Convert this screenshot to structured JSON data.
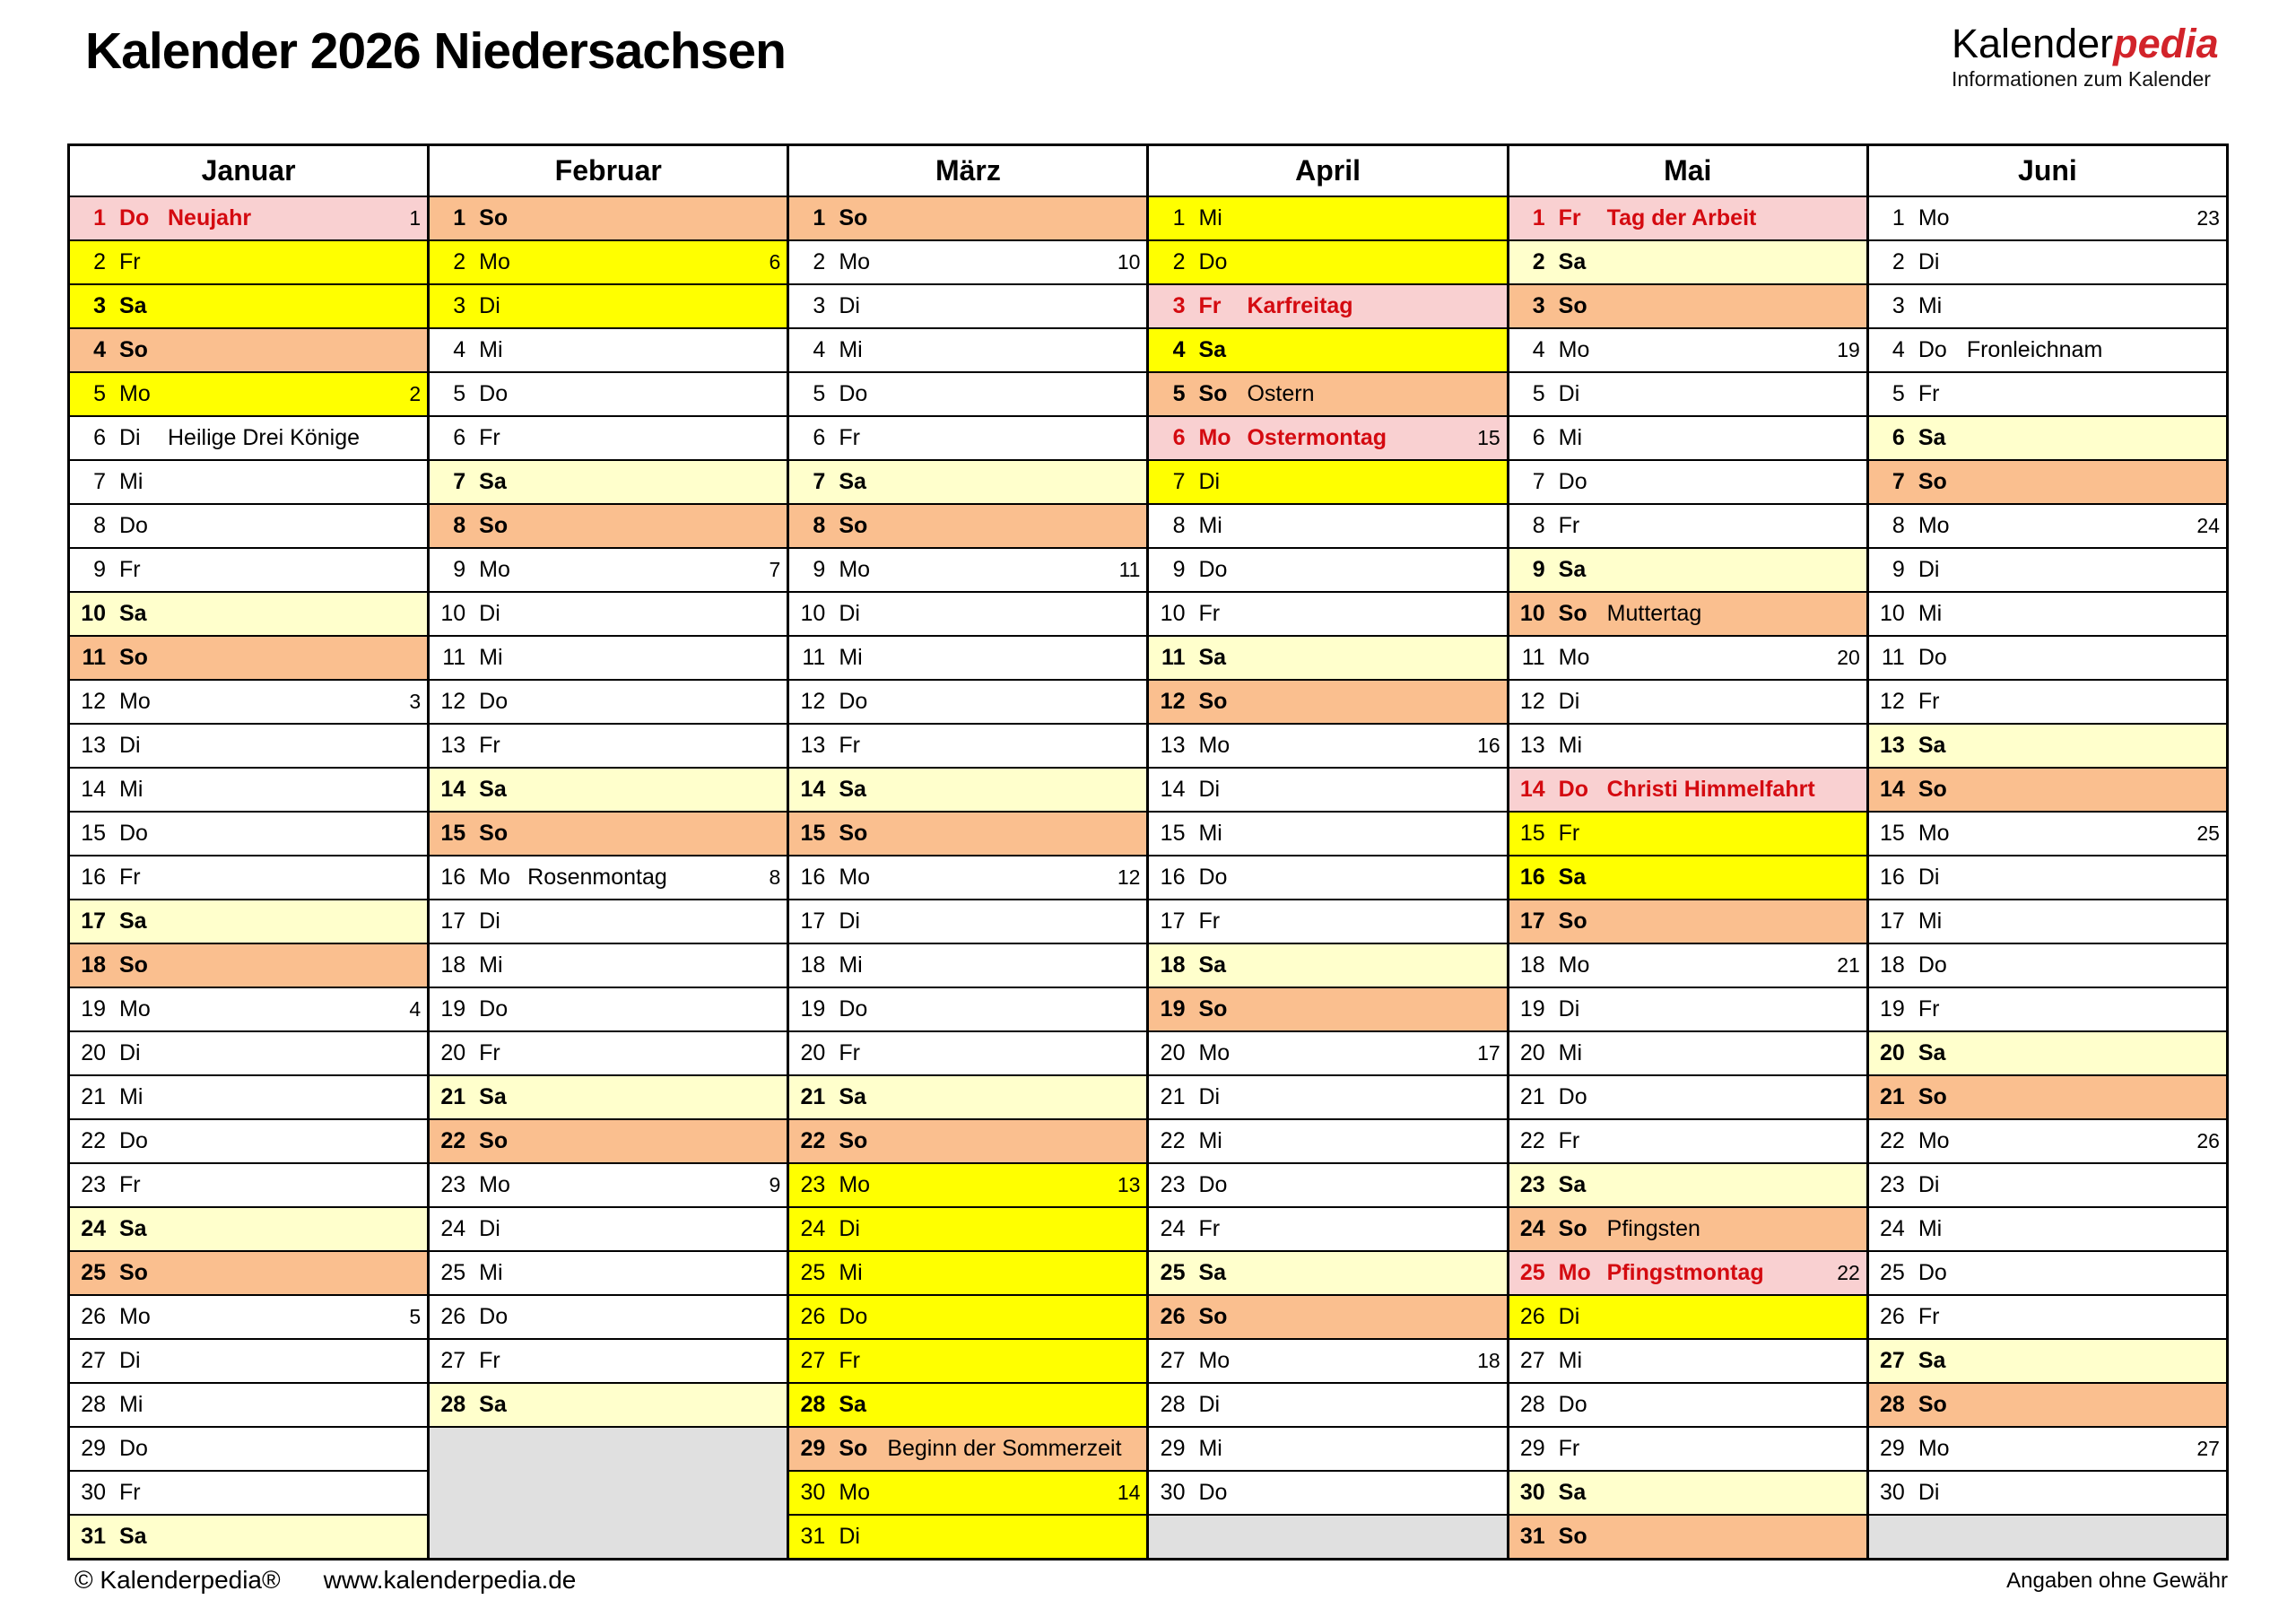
{
  "page": {
    "title": "Kalender 2026 Niedersachsen"
  },
  "logo": {
    "name_black": "Kalender",
    "name_red": "pedia",
    "subtitle": "Informationen zum Kalender"
  },
  "footer": {
    "copyright": "© Kalenderpedia®",
    "url": "www.kalenderpedia.de",
    "disclaimer": "Angaben ohne Gewähr"
  },
  "colors": {
    "sunday": "#fabf8f",
    "saturday": "#ffffcc",
    "ferien": "#ffff00",
    "holiday_bg": "#f9d0d1",
    "holiday_text": "#d40a10",
    "empty": "#e0e0e0",
    "logo_red": "#d2232a"
  },
  "day_tuple_format": [
    "day_number",
    "weekday_abbrev",
    "cell_type (w=workday, sa=saturday, su=sunday, f=school-holiday, h=public-holiday)",
    "note",
    "week_number"
  ],
  "months": [
    {
      "name": "Januar",
      "empty_rows": 0,
      "days": [
        [
          1,
          "Do",
          "h",
          "Neujahr",
          1
        ],
        [
          2,
          "Fr",
          "f",
          null,
          null
        ],
        [
          3,
          "Sa",
          "f",
          null,
          null
        ],
        [
          4,
          "So",
          "su",
          null,
          null
        ],
        [
          5,
          "Mo",
          "f",
          null,
          2
        ],
        [
          6,
          "Di",
          "w",
          "Heilige Drei Könige",
          null
        ],
        [
          7,
          "Mi",
          "w",
          null,
          null
        ],
        [
          8,
          "Do",
          "w",
          null,
          null
        ],
        [
          9,
          "Fr",
          "w",
          null,
          null
        ],
        [
          10,
          "Sa",
          "sa",
          null,
          null
        ],
        [
          11,
          "So",
          "su",
          null,
          null
        ],
        [
          12,
          "Mo",
          "w",
          null,
          3
        ],
        [
          13,
          "Di",
          "w",
          null,
          null
        ],
        [
          14,
          "Mi",
          "w",
          null,
          null
        ],
        [
          15,
          "Do",
          "w",
          null,
          null
        ],
        [
          16,
          "Fr",
          "w",
          null,
          null
        ],
        [
          17,
          "Sa",
          "sa",
          null,
          null
        ],
        [
          18,
          "So",
          "su",
          null,
          null
        ],
        [
          19,
          "Mo",
          "w",
          null,
          4
        ],
        [
          20,
          "Di",
          "w",
          null,
          null
        ],
        [
          21,
          "Mi",
          "w",
          null,
          null
        ],
        [
          22,
          "Do",
          "w",
          null,
          null
        ],
        [
          23,
          "Fr",
          "w",
          null,
          null
        ],
        [
          24,
          "Sa",
          "sa",
          null,
          null
        ],
        [
          25,
          "So",
          "su",
          null,
          null
        ],
        [
          26,
          "Mo",
          "w",
          null,
          5
        ],
        [
          27,
          "Di",
          "w",
          null,
          null
        ],
        [
          28,
          "Mi",
          "w",
          null,
          null
        ],
        [
          29,
          "Do",
          "w",
          null,
          null
        ],
        [
          30,
          "Fr",
          "w",
          null,
          null
        ],
        [
          31,
          "Sa",
          "sa",
          null,
          null
        ]
      ]
    },
    {
      "name": "Februar",
      "empty_rows": 3,
      "days": [
        [
          1,
          "So",
          "su",
          null,
          null
        ],
        [
          2,
          "Mo",
          "f",
          null,
          6
        ],
        [
          3,
          "Di",
          "f",
          null,
          null
        ],
        [
          4,
          "Mi",
          "w",
          null,
          null
        ],
        [
          5,
          "Do",
          "w",
          null,
          null
        ],
        [
          6,
          "Fr",
          "w",
          null,
          null
        ],
        [
          7,
          "Sa",
          "sa",
          null,
          null
        ],
        [
          8,
          "So",
          "su",
          null,
          null
        ],
        [
          9,
          "Mo",
          "w",
          null,
          7
        ],
        [
          10,
          "Di",
          "w",
          null,
          null
        ],
        [
          11,
          "Mi",
          "w",
          null,
          null
        ],
        [
          12,
          "Do",
          "w",
          null,
          null
        ],
        [
          13,
          "Fr",
          "w",
          null,
          null
        ],
        [
          14,
          "Sa",
          "sa",
          null,
          null
        ],
        [
          15,
          "So",
          "su",
          null,
          null
        ],
        [
          16,
          "Mo",
          "w",
          "Rosenmontag",
          8
        ],
        [
          17,
          "Di",
          "w",
          null,
          null
        ],
        [
          18,
          "Mi",
          "w",
          null,
          null
        ],
        [
          19,
          "Do",
          "w",
          null,
          null
        ],
        [
          20,
          "Fr",
          "w",
          null,
          null
        ],
        [
          21,
          "Sa",
          "sa",
          null,
          null
        ],
        [
          22,
          "So",
          "su",
          null,
          null
        ],
        [
          23,
          "Mo",
          "w",
          null,
          9
        ],
        [
          24,
          "Di",
          "w",
          null,
          null
        ],
        [
          25,
          "Mi",
          "w",
          null,
          null
        ],
        [
          26,
          "Do",
          "w",
          null,
          null
        ],
        [
          27,
          "Fr",
          "w",
          null,
          null
        ],
        [
          28,
          "Sa",
          "sa",
          null,
          null
        ]
      ]
    },
    {
      "name": "März",
      "empty_rows": 0,
      "days": [
        [
          1,
          "So",
          "su",
          null,
          null
        ],
        [
          2,
          "Mo",
          "w",
          null,
          10
        ],
        [
          3,
          "Di",
          "w",
          null,
          null
        ],
        [
          4,
          "Mi",
          "w",
          null,
          null
        ],
        [
          5,
          "Do",
          "w",
          null,
          null
        ],
        [
          6,
          "Fr",
          "w",
          null,
          null
        ],
        [
          7,
          "Sa",
          "sa",
          null,
          null
        ],
        [
          8,
          "So",
          "su",
          null,
          null
        ],
        [
          9,
          "Mo",
          "w",
          null,
          11
        ],
        [
          10,
          "Di",
          "w",
          null,
          null
        ],
        [
          11,
          "Mi",
          "w",
          null,
          null
        ],
        [
          12,
          "Do",
          "w",
          null,
          null
        ],
        [
          13,
          "Fr",
          "w",
          null,
          null
        ],
        [
          14,
          "Sa",
          "sa",
          null,
          null
        ],
        [
          15,
          "So",
          "su",
          null,
          null
        ],
        [
          16,
          "Mo",
          "w",
          null,
          12
        ],
        [
          17,
          "Di",
          "w",
          null,
          null
        ],
        [
          18,
          "Mi",
          "w",
          null,
          null
        ],
        [
          19,
          "Do",
          "w",
          null,
          null
        ],
        [
          20,
          "Fr",
          "w",
          null,
          null
        ],
        [
          21,
          "Sa",
          "sa",
          null,
          null
        ],
        [
          22,
          "So",
          "su",
          null,
          null
        ],
        [
          23,
          "Mo",
          "f",
          null,
          13
        ],
        [
          24,
          "Di",
          "f",
          null,
          null
        ],
        [
          25,
          "Mi",
          "f",
          null,
          null
        ],
        [
          26,
          "Do",
          "f",
          null,
          null
        ],
        [
          27,
          "Fr",
          "f",
          null,
          null
        ],
        [
          28,
          "Sa",
          "f",
          null,
          null
        ],
        [
          29,
          "So",
          "su",
          "Beginn der Sommerzeit",
          null
        ],
        [
          30,
          "Mo",
          "f",
          null,
          14
        ],
        [
          31,
          "Di",
          "f",
          null,
          null
        ]
      ]
    },
    {
      "name": "April",
      "empty_rows": 1,
      "days": [
        [
          1,
          "Mi",
          "f",
          null,
          null
        ],
        [
          2,
          "Do",
          "f",
          null,
          null
        ],
        [
          3,
          "Fr",
          "h",
          "Karfreitag",
          null
        ],
        [
          4,
          "Sa",
          "f",
          null,
          null
        ],
        [
          5,
          "So",
          "su",
          "Ostern",
          null
        ],
        [
          6,
          "Mo",
          "h",
          "Ostermontag",
          15
        ],
        [
          7,
          "Di",
          "f",
          null,
          null
        ],
        [
          8,
          "Mi",
          "w",
          null,
          null
        ],
        [
          9,
          "Do",
          "w",
          null,
          null
        ],
        [
          10,
          "Fr",
          "w",
          null,
          null
        ],
        [
          11,
          "Sa",
          "sa",
          null,
          null
        ],
        [
          12,
          "So",
          "su",
          null,
          null
        ],
        [
          13,
          "Mo",
          "w",
          null,
          16
        ],
        [
          14,
          "Di",
          "w",
          null,
          null
        ],
        [
          15,
          "Mi",
          "w",
          null,
          null
        ],
        [
          16,
          "Do",
          "w",
          null,
          null
        ],
        [
          17,
          "Fr",
          "w",
          null,
          null
        ],
        [
          18,
          "Sa",
          "sa",
          null,
          null
        ],
        [
          19,
          "So",
          "su",
          null,
          null
        ],
        [
          20,
          "Mo",
          "w",
          null,
          17
        ],
        [
          21,
          "Di",
          "w",
          null,
          null
        ],
        [
          22,
          "Mi",
          "w",
          null,
          null
        ],
        [
          23,
          "Do",
          "w",
          null,
          null
        ],
        [
          24,
          "Fr",
          "w",
          null,
          null
        ],
        [
          25,
          "Sa",
          "sa",
          null,
          null
        ],
        [
          26,
          "So",
          "su",
          null,
          null
        ],
        [
          27,
          "Mo",
          "w",
          null,
          18
        ],
        [
          28,
          "Di",
          "w",
          null,
          null
        ],
        [
          29,
          "Mi",
          "w",
          null,
          null
        ],
        [
          30,
          "Do",
          "w",
          null,
          null
        ]
      ]
    },
    {
      "name": "Mai",
      "empty_rows": 0,
      "days": [
        [
          1,
          "Fr",
          "h",
          "Tag der Arbeit",
          null
        ],
        [
          2,
          "Sa",
          "sa",
          null,
          null
        ],
        [
          3,
          "So",
          "su",
          null,
          null
        ],
        [
          4,
          "Mo",
          "w",
          null,
          19
        ],
        [
          5,
          "Di",
          "w",
          null,
          null
        ],
        [
          6,
          "Mi",
          "w",
          null,
          null
        ],
        [
          7,
          "Do",
          "w",
          null,
          null
        ],
        [
          8,
          "Fr",
          "w",
          null,
          null
        ],
        [
          9,
          "Sa",
          "sa",
          null,
          null
        ],
        [
          10,
          "So",
          "su",
          "Muttertag",
          null
        ],
        [
          11,
          "Mo",
          "w",
          null,
          20
        ],
        [
          12,
          "Di",
          "w",
          null,
          null
        ],
        [
          13,
          "Mi",
          "w",
          null,
          null
        ],
        [
          14,
          "Do",
          "h",
          "Christi Himmelfahrt",
          null
        ],
        [
          15,
          "Fr",
          "f",
          null,
          null
        ],
        [
          16,
          "Sa",
          "f",
          null,
          null
        ],
        [
          17,
          "So",
          "su",
          null,
          null
        ],
        [
          18,
          "Mo",
          "w",
          null,
          21
        ],
        [
          19,
          "Di",
          "w",
          null,
          null
        ],
        [
          20,
          "Mi",
          "w",
          null,
          null
        ],
        [
          21,
          "Do",
          "w",
          null,
          null
        ],
        [
          22,
          "Fr",
          "w",
          null,
          null
        ],
        [
          23,
          "Sa",
          "sa",
          null,
          null
        ],
        [
          24,
          "So",
          "su",
          "Pfingsten",
          null
        ],
        [
          25,
          "Mo",
          "h",
          "Pfingstmontag",
          22
        ],
        [
          26,
          "Di",
          "f",
          null,
          null
        ],
        [
          27,
          "Mi",
          "w",
          null,
          null
        ],
        [
          28,
          "Do",
          "w",
          null,
          null
        ],
        [
          29,
          "Fr",
          "w",
          null,
          null
        ],
        [
          30,
          "Sa",
          "sa",
          null,
          null
        ],
        [
          31,
          "So",
          "su",
          null,
          null
        ]
      ]
    },
    {
      "name": "Juni",
      "empty_rows": 1,
      "days": [
        [
          1,
          "Mo",
          "w",
          null,
          23
        ],
        [
          2,
          "Di",
          "w",
          null,
          null
        ],
        [
          3,
          "Mi",
          "w",
          null,
          null
        ],
        [
          4,
          "Do",
          "w",
          "Fronleichnam",
          null
        ],
        [
          5,
          "Fr",
          "w",
          null,
          null
        ],
        [
          6,
          "Sa",
          "sa",
          null,
          null
        ],
        [
          7,
          "So",
          "su",
          null,
          null
        ],
        [
          8,
          "Mo",
          "w",
          null,
          24
        ],
        [
          9,
          "Di",
          "w",
          null,
          null
        ],
        [
          10,
          "Mi",
          "w",
          null,
          null
        ],
        [
          11,
          "Do",
          "w",
          null,
          null
        ],
        [
          12,
          "Fr",
          "w",
          null,
          null
        ],
        [
          13,
          "Sa",
          "sa",
          null,
          null
        ],
        [
          14,
          "So",
          "su",
          null,
          null
        ],
        [
          15,
          "Mo",
          "w",
          null,
          25
        ],
        [
          16,
          "Di",
          "w",
          null,
          null
        ],
        [
          17,
          "Mi",
          "w",
          null,
          null
        ],
        [
          18,
          "Do",
          "w",
          null,
          null
        ],
        [
          19,
          "Fr",
          "w",
          null,
          null
        ],
        [
          20,
          "Sa",
          "sa",
          null,
          null
        ],
        [
          21,
          "So",
          "su",
          null,
          null
        ],
        [
          22,
          "Mo",
          "w",
          null,
          26
        ],
        [
          23,
          "Di",
          "w",
          null,
          null
        ],
        [
          24,
          "Mi",
          "w",
          null,
          null
        ],
        [
          25,
          "Do",
          "w",
          null,
          null
        ],
        [
          26,
          "Fr",
          "w",
          null,
          null
        ],
        [
          27,
          "Sa",
          "sa",
          null,
          null
        ],
        [
          28,
          "So",
          "su",
          null,
          null
        ],
        [
          29,
          "Mo",
          "w",
          null,
          27
        ],
        [
          30,
          "Di",
          "w",
          null,
          null
        ]
      ]
    }
  ]
}
